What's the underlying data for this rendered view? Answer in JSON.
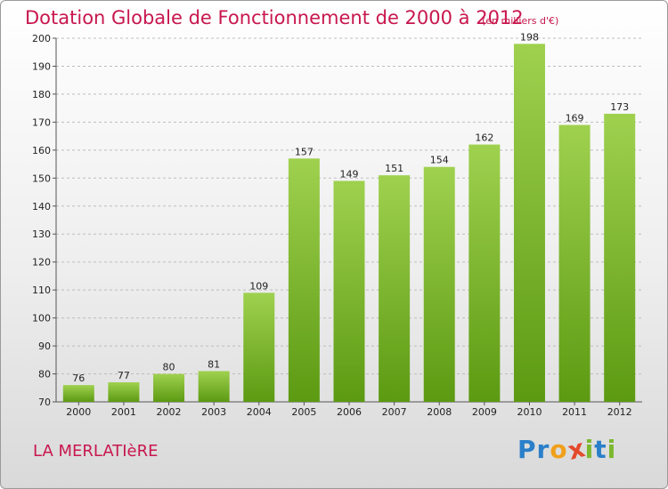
{
  "chart_data": {
    "type": "bar",
    "title": "Dotation Globale de Fonctionnement de 2000 à 2012",
    "subtitle": "(en milliers d'€)",
    "categories": [
      "2000",
      "2001",
      "2002",
      "2003",
      "2004",
      "2005",
      "2006",
      "2007",
      "2008",
      "2009",
      "2010",
      "2011",
      "2012"
    ],
    "values": [
      76,
      77,
      80,
      81,
      109,
      157,
      149,
      151,
      154,
      162,
      198,
      169,
      173
    ],
    "ylim": [
      70,
      200
    ],
    "yticks": [
      70,
      80,
      90,
      100,
      110,
      120,
      130,
      140,
      150,
      160,
      170,
      180,
      190,
      200
    ],
    "grid": "dashed-horizontal",
    "bar_color_top": "#9fd14f",
    "bar_color_bottom": "#5c9a12",
    "text_color": "#c8174e"
  },
  "footer": {
    "place": "LA MERLATIèRE",
    "logo_letters": [
      {
        "ch": "P",
        "color": "#2a7fc9"
      },
      {
        "ch": "r",
        "color": "#2a7fc9"
      },
      {
        "ch": "o",
        "color": "#f0a01a"
      },
      {
        "ch": "x",
        "color": "#e34a2b"
      },
      {
        "ch": "i",
        "color": "#7cb82f"
      },
      {
        "ch": "t",
        "color": "#2a7fc9"
      },
      {
        "ch": "i",
        "color": "#7cb82f"
      }
    ]
  }
}
